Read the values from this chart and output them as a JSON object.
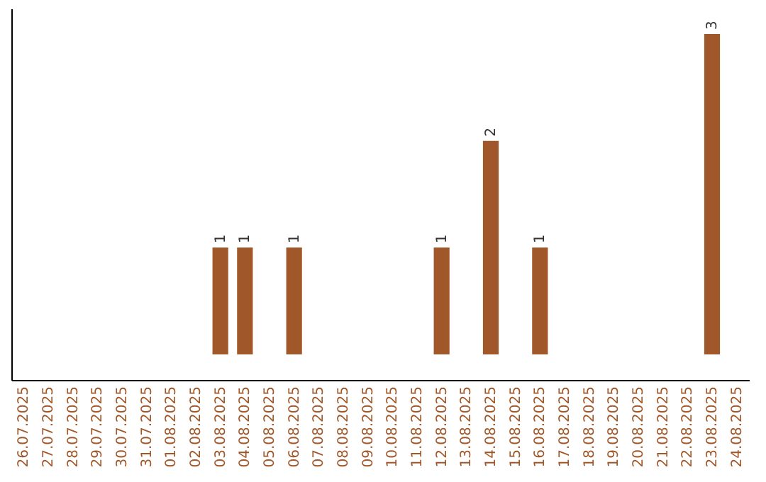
{
  "chart_data": {
    "type": "bar",
    "tick_labels": "x",
    "categories": [
      "26.07.2025",
      "27.07.2025",
      "28.07.2025",
      "29.07.2025",
      "30.07.2025",
      "31.07.2025",
      "01.08.2025",
      "02.08.2025",
      "03.08.2025",
      "04.08.2025",
      "05.08.2025",
      "06.08.2025",
      "07.08.2025",
      "08.08.2025",
      "09.08.2025",
      "10.08.2025",
      "11.08.2025",
      "12.08.2025",
      "13.08.2025",
      "14.08.2025",
      "15.08.2025",
      "16.08.2025",
      "17.08.2025",
      "18.08.2025",
      "19.08.2025",
      "20.08.2025",
      "21.08.2025",
      "22.08.2025",
      "23.08.2025",
      "24.08.2025"
    ],
    "values": [
      0,
      0,
      0,
      0,
      0,
      0,
      0,
      0,
      1,
      1,
      0,
      1,
      0,
      0,
      0,
      0,
      0,
      1,
      0,
      2,
      0,
      1,
      0,
      0,
      0,
      0,
      0,
      0,
      3,
      0
    ],
    "value_labels": [
      null,
      null,
      null,
      null,
      null,
      null,
      null,
      null,
      "1",
      "1",
      null,
      "1",
      null,
      null,
      null,
      null,
      null,
      "1",
      null,
      "2",
      null,
      "1",
      null,
      null,
      null,
      null,
      null,
      null,
      "3",
      null
    ],
    "color": "#a0582a"
  }
}
